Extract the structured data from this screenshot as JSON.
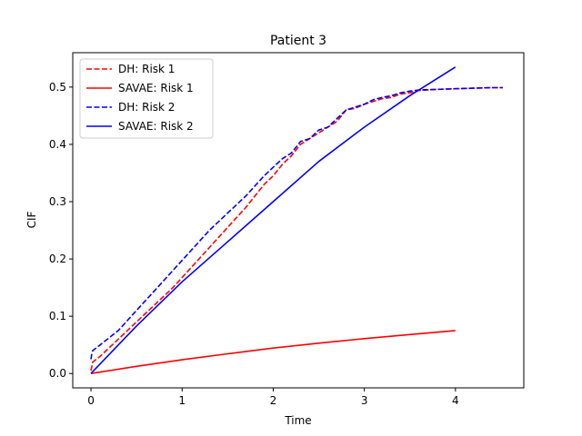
{
  "chart_data": {
    "type": "line",
    "title": "Patient 3",
    "xlabel": "Time",
    "ylabel": "CIF",
    "xlim": [
      -0.2,
      4.75
    ],
    "ylim": [
      -0.025,
      0.56
    ],
    "xticks": [
      0,
      1,
      2,
      3,
      4
    ],
    "yticks": [
      0.0,
      0.1,
      0.2,
      0.3,
      0.4,
      0.5
    ],
    "ytick_labels": [
      "0.0",
      "0.1",
      "0.2",
      "0.3",
      "0.4",
      "0.5"
    ],
    "grid": false,
    "legend_position": "top-left",
    "series": [
      {
        "name": "DH: Risk 1",
        "color": "#ff0000",
        "dash": "dashed",
        "x": [
          0,
          0.02,
          0.1,
          0.2,
          0.3,
          0.5,
          0.7,
          0.9,
          1.1,
          1.3,
          1.5,
          1.7,
          1.9,
          2.0,
          2.1,
          2.2,
          2.3,
          2.4,
          2.5,
          2.6,
          2.7,
          2.8,
          2.9,
          3.0,
          3.1,
          3.2,
          3.3,
          3.4,
          3.5,
          3.6,
          3.8,
          4.0,
          4.2,
          4.4,
          4.52
        ],
        "y": [
          0.005,
          0.02,
          0.03,
          0.045,
          0.06,
          0.09,
          0.12,
          0.15,
          0.185,
          0.22,
          0.255,
          0.29,
          0.33,
          0.345,
          0.365,
          0.38,
          0.4,
          0.41,
          0.42,
          0.43,
          0.44,
          0.46,
          0.463,
          0.47,
          0.475,
          0.48,
          0.482,
          0.488,
          0.49,
          0.494,
          0.496,
          0.497,
          0.498,
          0.499,
          0.499
        ]
      },
      {
        "name": "SAVAE: Risk 1",
        "color": "#ff0000",
        "dash": "solid",
        "x": [
          0,
          0.5,
          1.0,
          1.5,
          2.0,
          2.5,
          3.0,
          3.5,
          4.0
        ],
        "y": [
          0.0,
          0.0125,
          0.024,
          0.0345,
          0.0445,
          0.053,
          0.061,
          0.068,
          0.075
        ]
      },
      {
        "name": "DH: Risk 2",
        "color": "#0000ff",
        "dash": "dashed",
        "x": [
          0,
          0.01,
          0.02,
          0.1,
          0.3,
          0.5,
          0.7,
          0.9,
          1.1,
          1.3,
          1.5,
          1.7,
          1.9,
          2.0,
          2.1,
          2.2,
          2.3,
          2.4,
          2.5,
          2.6,
          2.7,
          2.8,
          2.9,
          3.0,
          3.1,
          3.2,
          3.3,
          3.4,
          3.5,
          3.6,
          3.8,
          4.0,
          4.2,
          4.4,
          4.52
        ],
        "y": [
          0.025,
          0.035,
          0.04,
          0.05,
          0.075,
          0.11,
          0.145,
          0.18,
          0.215,
          0.25,
          0.28,
          0.31,
          0.345,
          0.36,
          0.375,
          0.385,
          0.405,
          0.41,
          0.425,
          0.43,
          0.445,
          0.46,
          0.465,
          0.47,
          0.478,
          0.482,
          0.485,
          0.49,
          0.493,
          0.495,
          0.496,
          0.497,
          0.498,
          0.499,
          0.499
        ]
      },
      {
        "name": "SAVAE: Risk 2",
        "color": "#0000ff",
        "dash": "solid",
        "x": [
          0,
          0.5,
          1.0,
          1.5,
          2.0,
          2.5,
          3.0,
          3.5,
          4.0
        ],
        "y": [
          0.0,
          0.083,
          0.16,
          0.23,
          0.3,
          0.37,
          0.43,
          0.485,
          0.535
        ]
      }
    ]
  }
}
